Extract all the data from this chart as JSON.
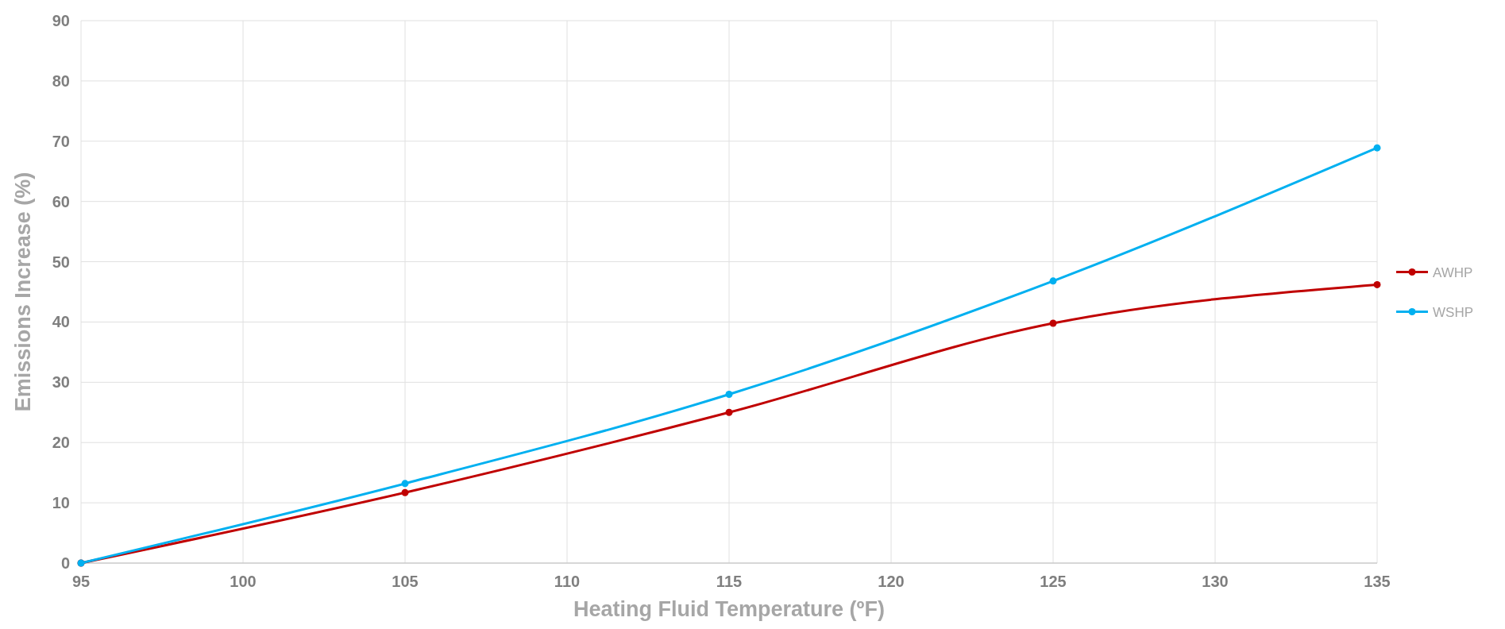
{
  "chart_data": {
    "type": "line",
    "xlabel": "Heating Fluid Temperature (ºF)",
    "ylabel": "Emissions Increase (%)",
    "x": [
      95,
      105,
      115,
      125,
      135
    ],
    "series": [
      {
        "name": "AWHP",
        "color": "#c00000",
        "values": [
          0,
          11.7,
          25,
          39.8,
          46.2
        ]
      },
      {
        "name": "WSHP",
        "color": "#00b0f0",
        "values": [
          0,
          13.2,
          28,
          46.8,
          68.9
        ]
      }
    ],
    "xlim": [
      95,
      135
    ],
    "xticks": [
      95,
      100,
      105,
      110,
      115,
      120,
      125,
      130,
      135
    ],
    "ylim": [
      0,
      90
    ],
    "yticks": [
      0,
      10,
      20,
      30,
      40,
      50,
      60,
      70,
      80,
      90
    ],
    "grid": true,
    "legend": "right",
    "marker": "circle",
    "line_style": "solid"
  }
}
